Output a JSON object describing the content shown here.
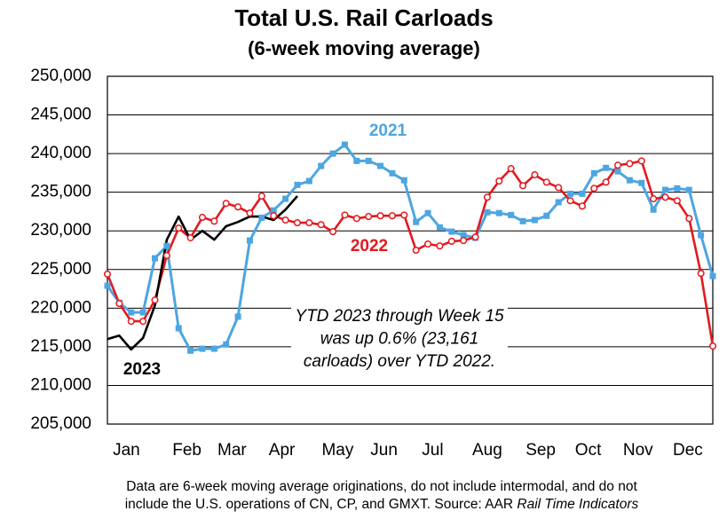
{
  "chart_data": {
    "type": "line",
    "title": "Total U.S. Rail Carloads",
    "subtitle": "(6-week moving average)",
    "x": [
      1,
      2,
      3,
      4,
      5,
      6,
      7,
      8,
      9,
      10,
      11,
      12,
      13,
      14,
      15,
      16,
      17,
      18,
      19,
      20,
      21,
      22,
      23,
      24,
      25,
      26,
      27,
      28,
      29,
      30,
      31,
      32,
      33,
      34,
      35,
      36,
      37,
      38,
      39,
      40,
      41,
      42,
      43,
      44,
      45,
      46,
      47,
      48,
      49,
      50,
      51,
      52
    ],
    "xlim": [
      1,
      52
    ],
    "xticks": [
      {
        "value": 2.6,
        "label": "Jan"
      },
      {
        "value": 7.7,
        "label": "Feb"
      },
      {
        "value": 11.5,
        "label": "Mar"
      },
      {
        "value": 15.7,
        "label": "Apr"
      },
      {
        "value": 20.4,
        "label": "May"
      },
      {
        "value": 24.3,
        "label": "Jun"
      },
      {
        "value": 28.4,
        "label": "Jul"
      },
      {
        "value": 33.0,
        "label": "Aug"
      },
      {
        "value": 37.5,
        "label": "Sep"
      },
      {
        "value": 41.5,
        "label": "Oct"
      },
      {
        "value": 45.7,
        "label": "Nov"
      },
      {
        "value": 49.9,
        "label": "Dec"
      }
    ],
    "ylim": [
      205000,
      250000
    ],
    "yticks": [
      {
        "value": 205000,
        "label": "205,000"
      },
      {
        "value": 210000,
        "label": "210,000"
      },
      {
        "value": 215000,
        "label": "215,000"
      },
      {
        "value": 220000,
        "label": "220,000"
      },
      {
        "value": 225000,
        "label": "225,000"
      },
      {
        "value": 230000,
        "label": "230,000"
      },
      {
        "value": 235000,
        "label": "235,000"
      },
      {
        "value": 240000,
        "label": "240,000"
      },
      {
        "value": 245000,
        "label": "245,000"
      },
      {
        "value": 250000,
        "label": "250,000"
      }
    ],
    "grid": true,
    "series": [
      {
        "name": "2021",
        "color": "#4da6e0",
        "marker": "square",
        "values": [
          222900,
          220700,
          219450,
          219450,
          226450,
          228050,
          217400,
          214500,
          214750,
          214750,
          215300,
          218900,
          228750,
          231700,
          232650,
          234150,
          235950,
          236450,
          238400,
          240000,
          241150,
          239050,
          239050,
          238400,
          237450,
          236550,
          231150,
          232300,
          230450,
          229900,
          229450,
          229100,
          232400,
          232300,
          232050,
          231250,
          231400,
          231950,
          233700,
          234800,
          234800,
          237450,
          238150,
          237700,
          236550,
          236200,
          232750,
          235300,
          235500,
          235300,
          229450,
          224150
        ]
      },
      {
        "name": "2022",
        "color": "#e3191f",
        "marker": "circle",
        "values": [
          224400,
          220600,
          218300,
          218300,
          221050,
          226800,
          230350,
          229100,
          231750,
          231250,
          233550,
          233100,
          232300,
          234500,
          231950,
          231400,
          231050,
          231050,
          230800,
          229900,
          232050,
          231600,
          231850,
          231950,
          231950,
          232050,
          227500,
          228300,
          228050,
          228650,
          228750,
          229200,
          234350,
          236450,
          238050,
          235850,
          237250,
          236300,
          235600,
          233900,
          233200,
          235500,
          236300,
          238500,
          238700,
          239050,
          234150,
          234350,
          233900,
          231600,
          224500,
          215100
        ]
      },
      {
        "name": "2023",
        "color": "#000000",
        "marker": "none",
        "values": [
          216000,
          216450,
          214650,
          216150,
          220350,
          228850,
          231850,
          228850,
          230000,
          228850,
          230600,
          231150,
          231850,
          231850,
          231400,
          232750,
          234500,
          null,
          null,
          null,
          null,
          null,
          null,
          null,
          null,
          null,
          null,
          null,
          null,
          null,
          null,
          null,
          null,
          null,
          null,
          null,
          null,
          null,
          null,
          null,
          null,
          null,
          null,
          null,
          null,
          null,
          null,
          null,
          null,
          null,
          null,
          null
        ]
      }
    ],
    "annotation": [
      "YTD 2023 through Week 15",
      "was up 0.6% (23,161",
      "carloads) over YTD 2022."
    ],
    "footnote": [
      "Data are 6-week moving average originations, do not include intermodal, and do not",
      "include the U.S. operations of CN, CP, and GMXT.   Source: AAR ",
      "Rail Time Indicators"
    ]
  }
}
